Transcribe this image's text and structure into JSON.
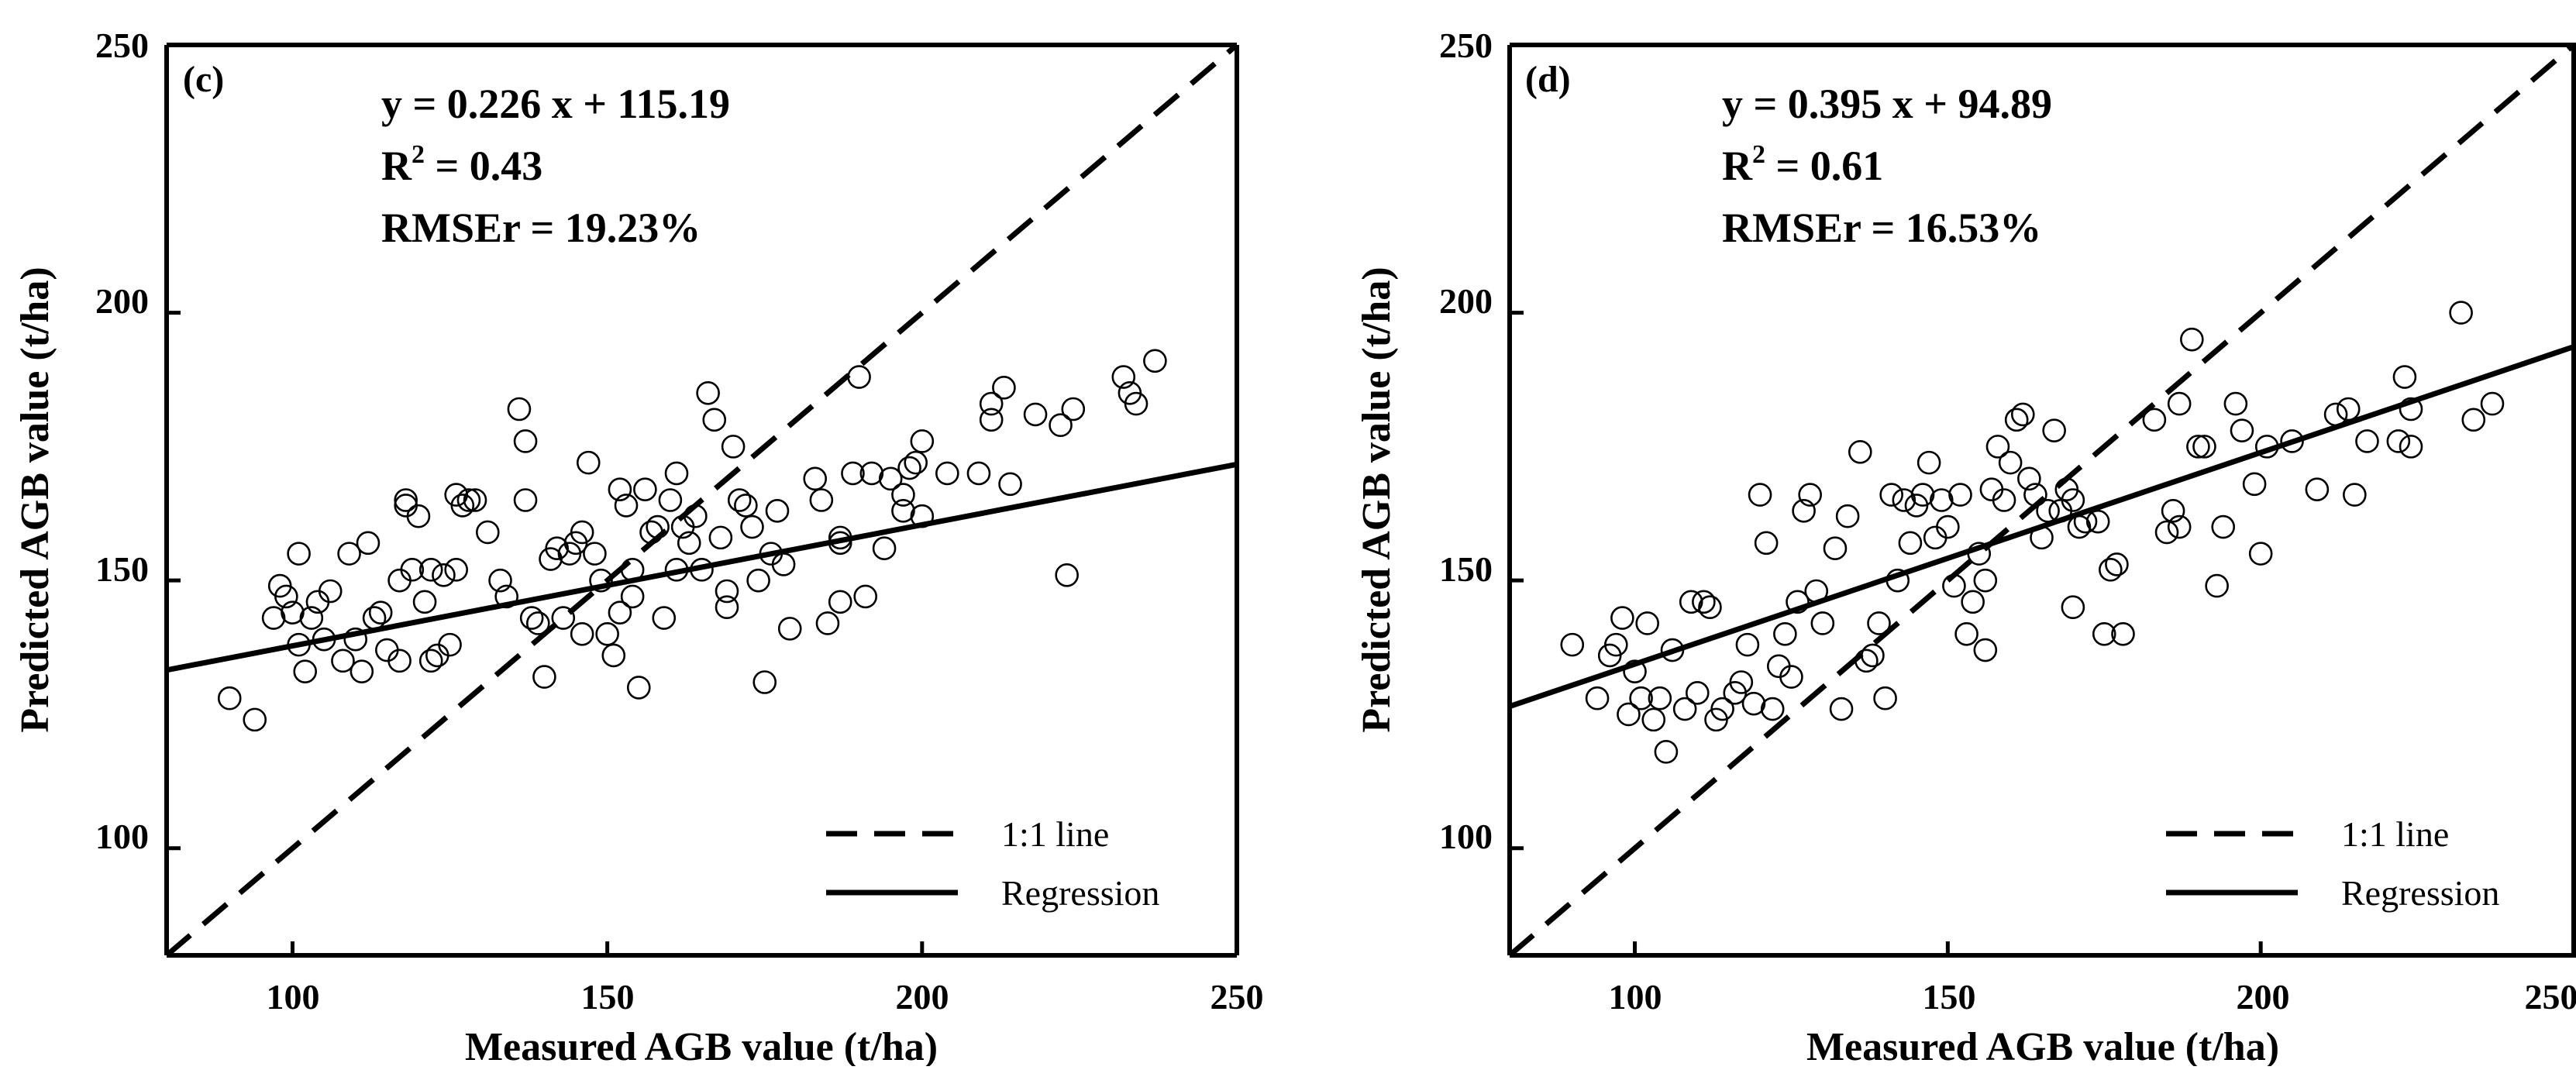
{
  "chart_data": [
    {
      "type": "scatter",
      "panel_label": "(c)",
      "equation": "y = 0.226 x + 115.19",
      "r2_prefix": "R",
      "r2_sup": "2",
      "r2_suffix": " = 0.43",
      "rmse": "RMSEr = 19.23%",
      "xlabel": "Measured AGB value (t/ha)",
      "ylabel": "Predicted AGB value (t/ha)",
      "xlim": [
        80,
        250
      ],
      "ylim": [
        80,
        250
      ],
      "xticks": [
        "100",
        "150",
        "200",
        "250"
      ],
      "yticks": [
        "100",
        "150",
        "200",
        "250"
      ],
      "legend": {
        "position": "bottom-right",
        "entries": [
          "1:1 line",
          "Regression"
        ]
      },
      "regression": {
        "slope": 0.226,
        "intercept": 115.19
      },
      "points": [
        [
          90,
          128
        ],
        [
          94,
          124
        ],
        [
          97,
          143
        ],
        [
          98,
          149
        ],
        [
          99,
          147
        ],
        [
          100,
          144
        ],
        [
          101,
          138
        ],
        [
          101,
          155
        ],
        [
          102,
          133
        ],
        [
          103,
          143
        ],
        [
          104,
          146
        ],
        [
          105,
          139
        ],
        [
          106,
          148
        ],
        [
          108,
          135
        ],
        [
          109,
          155
        ],
        [
          110,
          139
        ],
        [
          111,
          133
        ],
        [
          112,
          157
        ],
        [
          113,
          143
        ],
        [
          114,
          144
        ],
        [
          115,
          137
        ],
        [
          117,
          150
        ],
        [
          117,
          135
        ],
        [
          118,
          165
        ],
        [
          118,
          164
        ],
        [
          119,
          152
        ],
        [
          120,
          162
        ],
        [
          121,
          146
        ],
        [
          122,
          152
        ],
        [
          122,
          135
        ],
        [
          123,
          136
        ],
        [
          124,
          151
        ],
        [
          125,
          138
        ],
        [
          126,
          152
        ],
        [
          126,
          166
        ],
        [
          127,
          164
        ],
        [
          128,
          165
        ],
        [
          129,
          165
        ],
        [
          131,
          159
        ],
        [
          133,
          150
        ],
        [
          134,
          147
        ],
        [
          136,
          182
        ],
        [
          137,
          165
        ],
        [
          137,
          176
        ],
        [
          138,
          143
        ],
        [
          139,
          142
        ],
        [
          140,
          132
        ],
        [
          141,
          154
        ],
        [
          142,
          156
        ],
        [
          143,
          143
        ],
        [
          144,
          155
        ],
        [
          145,
          157
        ],
        [
          146,
          159
        ],
        [
          146,
          140
        ],
        [
          147,
          172
        ],
        [
          148,
          155
        ],
        [
          149,
          150
        ],
        [
          150,
          140
        ],
        [
          151,
          136
        ],
        [
          152,
          167
        ],
        [
          152,
          144
        ],
        [
          153,
          164
        ],
        [
          154,
          147
        ],
        [
          154,
          152
        ],
        [
          155,
          130
        ],
        [
          156,
          167
        ],
        [
          157,
          159
        ],
        [
          158,
          160
        ],
        [
          159,
          143
        ],
        [
          160,
          165
        ],
        [
          161,
          170
        ],
        [
          161,
          152
        ],
        [
          162,
          160
        ],
        [
          163,
          157
        ],
        [
          164,
          162
        ],
        [
          165,
          152
        ],
        [
          166,
          185
        ],
        [
          167,
          180
        ],
        [
          168,
          158
        ],
        [
          169,
          148
        ],
        [
          169,
          145
        ],
        [
          170,
          175
        ],
        [
          171,
          165
        ],
        [
          172,
          164
        ],
        [
          173,
          160
        ],
        [
          174,
          150
        ],
        [
          175,
          131
        ],
        [
          176,
          155
        ],
        [
          177,
          163
        ],
        [
          178,
          153
        ],
        [
          179,
          141
        ],
        [
          183,
          169
        ],
        [
          184,
          165
        ],
        [
          185,
          142
        ],
        [
          187,
          157
        ],
        [
          187,
          158
        ],
        [
          187,
          146
        ],
        [
          189,
          170
        ],
        [
          190,
          188
        ],
        [
          191,
          147
        ],
        [
          192,
          170
        ],
        [
          194,
          156
        ],
        [
          195,
          169
        ],
        [
          197,
          163
        ],
        [
          197,
          166
        ],
        [
          198,
          171
        ],
        [
          199,
          172
        ],
        [
          200,
          162
        ],
        [
          200,
          176
        ],
        [
          204,
          170
        ],
        [
          209,
          170
        ],
        [
          211,
          180
        ],
        [
          211,
          183
        ],
        [
          213,
          186
        ],
        [
          214,
          168
        ],
        [
          218,
          181
        ],
        [
          222,
          179
        ],
        [
          223,
          151
        ],
        [
          224,
          182
        ],
        [
          232,
          188
        ],
        [
          233,
          185
        ],
        [
          234,
          183
        ],
        [
          237,
          191
        ]
      ]
    },
    {
      "type": "scatter",
      "panel_label": "(d)",
      "equation": "y = 0.395 x + 94.89",
      "r2_prefix": "R",
      "r2_sup": "2",
      "r2_suffix": " = 0.61",
      "rmse": "RMSEr = 16.53%",
      "xlabel": "Measured AGB value (t/ha)",
      "ylabel": "Predicted AGB value (t/ha)",
      "xlim": [
        80,
        250
      ],
      "ylim": [
        80,
        250
      ],
      "xticks": [
        "100",
        "150",
        "200",
        "250"
      ],
      "yticks": [
        "100",
        "150",
        "200",
        "250"
      ],
      "legend": {
        "position": "bottom-right",
        "entries": [
          "1:1 line",
          "Regression"
        ]
      },
      "regression": {
        "slope": 0.395,
        "intercept": 94.89
      },
      "points": [
        [
          90,
          138
        ],
        [
          94,
          128
        ],
        [
          96,
          136
        ],
        [
          97,
          138
        ],
        [
          98,
          143
        ],
        [
          99,
          125
        ],
        [
          100,
          133
        ],
        [
          101,
          128
        ],
        [
          102,
          142
        ],
        [
          103,
          124
        ],
        [
          104,
          128
        ],
        [
          105,
          118
        ],
        [
          106,
          137
        ],
        [
          108,
          126
        ],
        [
          109,
          146
        ],
        [
          110,
          129
        ],
        [
          111,
          146
        ],
        [
          112,
          145
        ],
        [
          113,
          124
        ],
        [
          114,
          126
        ],
        [
          116,
          129
        ],
        [
          117,
          131
        ],
        [
          118,
          138
        ],
        [
          119,
          127
        ],
        [
          120,
          166
        ],
        [
          121,
          157
        ],
        [
          122,
          126
        ],
        [
          123,
          134
        ],
        [
          124,
          140
        ],
        [
          125,
          132
        ],
        [
          126,
          146
        ],
        [
          127,
          163
        ],
        [
          128,
          166
        ],
        [
          129,
          148
        ],
        [
          130,
          142
        ],
        [
          132,
          156
        ],
        [
          133,
          126
        ],
        [
          134,
          162
        ],
        [
          136,
          174
        ],
        [
          137,
          135
        ],
        [
          138,
          136
        ],
        [
          139,
          142
        ],
        [
          140,
          128
        ],
        [
          141,
          166
        ],
        [
          142,
          150
        ],
        [
          143,
          165
        ],
        [
          144,
          157
        ],
        [
          145,
          164
        ],
        [
          146,
          166
        ],
        [
          147,
          172
        ],
        [
          148,
          158
        ],
        [
          149,
          165
        ],
        [
          150,
          160
        ],
        [
          151,
          149
        ],
        [
          152,
          166
        ],
        [
          153,
          140
        ],
        [
          154,
          146
        ],
        [
          155,
          155
        ],
        [
          156,
          150
        ],
        [
          156,
          137
        ],
        [
          157,
          167
        ],
        [
          158,
          175
        ],
        [
          159,
          165
        ],
        [
          160,
          172
        ],
        [
          161,
          180
        ],
        [
          162,
          181
        ],
        [
          163,
          169
        ],
        [
          164,
          166
        ],
        [
          165,
          158
        ],
        [
          166,
          163
        ],
        [
          167,
          178
        ],
        [
          168,
          163
        ],
        [
          169,
          167
        ],
        [
          170,
          165
        ],
        [
          170,
          145
        ],
        [
          171,
          160
        ],
        [
          172,
          161
        ],
        [
          174,
          161
        ],
        [
          175,
          140
        ],
        [
          176,
          152
        ],
        [
          177,
          153
        ],
        [
          178,
          140
        ],
        [
          183,
          180
        ],
        [
          185,
          159
        ],
        [
          186,
          163
        ],
        [
          187,
          160
        ],
        [
          187,
          183
        ],
        [
          189,
          195
        ],
        [
          190,
          175
        ],
        [
          191,
          175
        ],
        [
          193,
          149
        ],
        [
          194,
          160
        ],
        [
          196,
          183
        ],
        [
          197,
          178
        ],
        [
          199,
          168
        ],
        [
          200,
          155
        ],
        [
          201,
          175
        ],
        [
          205,
          176
        ],
        [
          209,
          167
        ],
        [
          212,
          181
        ],
        [
          214,
          182
        ],
        [
          215,
          166
        ],
        [
          217,
          176
        ],
        [
          222,
          176
        ],
        [
          223,
          188
        ],
        [
          224,
          182
        ],
        [
          224,
          175
        ],
        [
          232,
          200
        ],
        [
          234,
          180
        ],
        [
          237,
          183
        ]
      ]
    }
  ]
}
